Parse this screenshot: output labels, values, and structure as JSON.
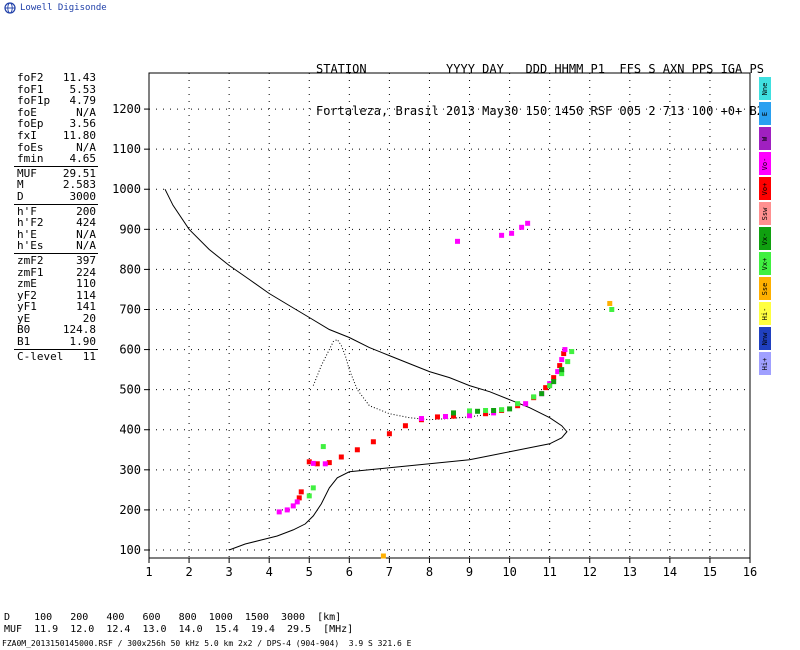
{
  "logo": {
    "text": "Lowell Digisonde"
  },
  "header": {
    "line1": "STATION           YYYY DAY   DDD HHMM P1  FFS S AXN PPS IGA PS",
    "line2": "Fortaleza, Brasil 2013 May30 150 1450 RSF 005 2 713 100 +0+ B2"
  },
  "params": {
    "group1": [
      {
        "label": "foF2",
        "value": "11.43"
      },
      {
        "label": "foF1",
        "value": "5.53"
      },
      {
        "label": "foF1p",
        "value": "4.79"
      },
      {
        "label": "foE",
        "value": "N/A"
      },
      {
        "label": "foEp",
        "value": "3.56"
      },
      {
        "label": "fxI",
        "value": "11.80"
      },
      {
        "label": "foEs",
        "value": "N/A"
      },
      {
        "label": "fmin",
        "value": "4.65"
      }
    ],
    "group2": [
      {
        "label": "MUF",
        "value": "29.51"
      },
      {
        "label": "M",
        "value": "2.583"
      },
      {
        "label": "D",
        "value": "3000"
      }
    ],
    "group3": [
      {
        "label": "h'F",
        "value": "200"
      },
      {
        "label": "h'F2",
        "value": "424"
      },
      {
        "label": "h'E",
        "value": "N/A"
      },
      {
        "label": "h'Es",
        "value": "N/A"
      }
    ],
    "group4": [
      {
        "label": "zmF2",
        "value": "397"
      },
      {
        "label": "zmF1",
        "value": "224"
      },
      {
        "label": "zmE",
        "value": "110"
      },
      {
        "label": "yF2",
        "value": "114"
      },
      {
        "label": "yF1",
        "value": "141"
      },
      {
        "label": "yE",
        "value": "20"
      },
      {
        "label": "B0",
        "value": "124.8"
      },
      {
        "label": "B1",
        "value": "1.90"
      }
    ],
    "group5": [
      {
        "label": "C-level",
        "value": "11"
      }
    ]
  },
  "legend": [
    {
      "label": "Nne",
      "color": "#40e0e0"
    },
    {
      "label": "E",
      "color": "#2aa0f0"
    },
    {
      "label": "W",
      "color": "#a020c0"
    },
    {
      "label": "Vo-",
      "color": "#ff00ff"
    },
    {
      "label": "Vo+",
      "color": "#ff0000"
    },
    {
      "label": "Ssw",
      "color": "#ff9090"
    },
    {
      "label": "Vx-",
      "color": "#10a010"
    },
    {
      "label": "Vx+",
      "color": "#40f040"
    },
    {
      "label": "Sse",
      "color": "#ffb000"
    },
    {
      "label": "Hi-",
      "color": "#ffff40"
    },
    {
      "label": "Nnw",
      "color": "#2040c0"
    },
    {
      "label": "Hi+",
      "color": "#a0a0ff"
    }
  ],
  "muf_table": {
    "row1": "D    100   200   400   600   800  1000  1500  3000  [km]",
    "row2": "MUF  11.9  12.0  12.4  13.0  14.0  15.4  19.4  29.5  [MHz]"
  },
  "footer": "FZA0M_2013150145000.RSF / 300x256h 50 kHz 5.0 km 2x2 / DPS-4 (904-904)  3.9 S 321.6 E",
  "chart_data": {
    "type": "scatter",
    "xlim": [
      1,
      16
    ],
    "ylim": [
      80,
      1290
    ],
    "xticks": [
      1,
      2,
      3,
      4,
      5,
      6,
      7,
      8,
      9,
      10,
      11,
      12,
      13,
      14,
      15,
      16
    ],
    "yticks": [
      100,
      200,
      300,
      400,
      500,
      600,
      700,
      800,
      900,
      1000,
      1100,
      1200
    ],
    "grid": true,
    "profile_line": {
      "x": [
        1.4,
        1.6,
        2.0,
        2.5,
        3.0,
        3.5,
        4.0,
        4.5,
        5.0,
        5.5,
        6.0,
        6.5,
        7.0,
        7.5,
        8.0,
        8.5,
        9.0,
        9.5,
        10.0,
        10.5,
        11.0,
        11.3,
        11.43,
        11.3,
        11.0,
        10.5,
        10.0,
        9.5,
        9.0,
        8.5,
        8.0,
        7.5,
        7.0,
        6.5,
        6.0,
        5.7,
        5.5,
        5.3,
        5.1,
        4.9,
        4.6,
        4.2,
        3.8,
        3.4,
        3.0
      ],
      "y": [
        1000,
        960,
        900,
        850,
        810,
        775,
        740,
        710,
        680,
        650,
        630,
        605,
        585,
        565,
        545,
        530,
        510,
        495,
        475,
        455,
        430,
        410,
        395,
        380,
        365,
        355,
        345,
        335,
        325,
        320,
        315,
        310,
        305,
        300,
        295,
        280,
        255,
        215,
        185,
        165,
        150,
        135,
        125,
        115,
        100
      ]
    },
    "trace_line": {
      "x": [
        5.1,
        5.3,
        5.5,
        5.6,
        5.7,
        5.8,
        5.9,
        6.0,
        6.2,
        6.5,
        7.0,
        7.5,
        8.0,
        8.5,
        9.0,
        9.6
      ],
      "y": [
        510,
        560,
        600,
        620,
        625,
        610,
        585,
        550,
        500,
        460,
        440,
        430,
        425,
        428,
        432,
        440
      ]
    },
    "series": [
      {
        "name": "Vo+",
        "color": "#ff0000",
        "points": [
          [
            5.0,
            320
          ],
          [
            5.2,
            315
          ],
          [
            5.5,
            318
          ],
          [
            5.8,
            332
          ],
          [
            6.2,
            350
          ],
          [
            6.6,
            370
          ],
          [
            7.0,
            390
          ],
          [
            7.4,
            410
          ],
          [
            7.8,
            425
          ],
          [
            8.2,
            432
          ],
          [
            8.6,
            434
          ],
          [
            9.0,
            436
          ],
          [
            9.4,
            440
          ],
          [
            9.8,
            448
          ],
          [
            10.2,
            460
          ],
          [
            10.6,
            480
          ],
          [
            10.9,
            505
          ],
          [
            11.1,
            530
          ],
          [
            11.25,
            560
          ],
          [
            11.35,
            590
          ],
          [
            4.75,
            230
          ],
          [
            4.8,
            245
          ]
        ]
      },
      {
        "name": "Vo-",
        "color": "#ff00ff",
        "points": [
          [
            4.25,
            195
          ],
          [
            4.45,
            200
          ],
          [
            4.6,
            210
          ],
          [
            4.7,
            220
          ],
          [
            5.1,
            316
          ],
          [
            5.4,
            315
          ],
          [
            7.8,
            428
          ],
          [
            8.4,
            433
          ],
          [
            9.0,
            435
          ],
          [
            9.6,
            442
          ],
          [
            10.4,
            465
          ],
          [
            10.8,
            490
          ],
          [
            11.0,
            515
          ],
          [
            11.2,
            545
          ],
          [
            11.3,
            575
          ],
          [
            11.38,
            600
          ],
          [
            8.7,
            870
          ],
          [
            9.8,
            885
          ],
          [
            10.05,
            890
          ],
          [
            10.3,
            905
          ],
          [
            10.45,
            915
          ]
        ]
      },
      {
        "name": "Vx+",
        "color": "#40f040",
        "points": [
          [
            5.0,
            235
          ],
          [
            5.1,
            255
          ],
          [
            5.35,
            358
          ],
          [
            9.0,
            447
          ],
          [
            9.4,
            448
          ],
          [
            9.8,
            450
          ],
          [
            10.2,
            465
          ],
          [
            10.6,
            482
          ],
          [
            11.0,
            510
          ],
          [
            11.3,
            540
          ],
          [
            11.45,
            570
          ],
          [
            11.55,
            595
          ],
          [
            12.55,
            700
          ]
        ]
      },
      {
        "name": "Vx-",
        "color": "#10a010",
        "points": [
          [
            8.6,
            442
          ],
          [
            9.2,
            446
          ],
          [
            9.6,
            448
          ],
          [
            10.0,
            452
          ],
          [
            10.8,
            490
          ],
          [
            11.1,
            520
          ],
          [
            11.3,
            550
          ]
        ]
      },
      {
        "name": "Sse",
        "color": "#ffb000",
        "points": [
          [
            12.5,
            715
          ],
          [
            6.85,
            85
          ]
        ]
      }
    ]
  }
}
